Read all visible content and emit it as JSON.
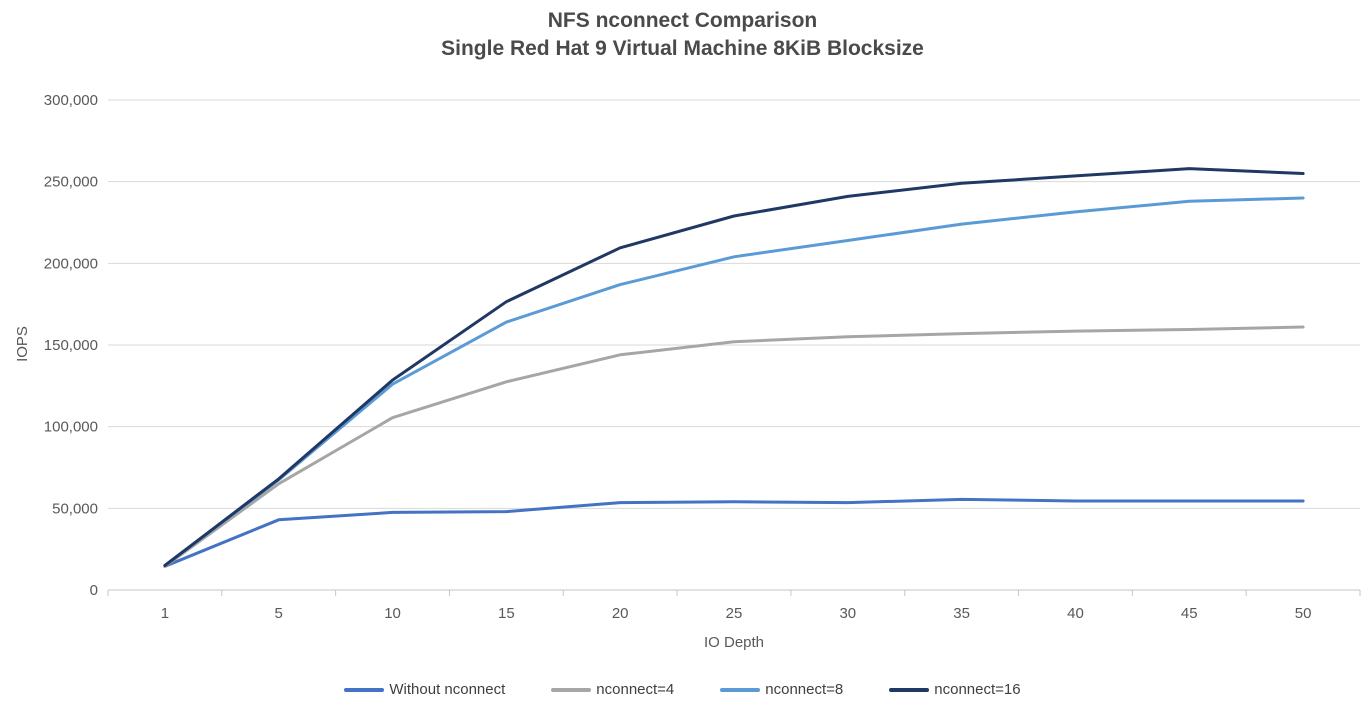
{
  "title": "NFS nconnect Comparison",
  "subtitle": "Single Red Hat 9 Virtual Machine 8KiB Blocksize",
  "chart_data": {
    "type": "line",
    "title": "NFS nconnect Comparison",
    "subtitle": "Single Red Hat 9 Virtual Machine 8KiB Blocksize",
    "x_axis_label": "IO Depth",
    "y_axis_label": "IOPS",
    "x": [
      1,
      5,
      10,
      15,
      20,
      25,
      30,
      35,
      40,
      45,
      50
    ],
    "ylim": [
      0,
      300000
    ],
    "y_tick_step": 50000,
    "grid": true,
    "legend_position": "bottom",
    "axis_colors": {
      "gridline": "#d9d9d9",
      "axis_line": "#c6c6c6",
      "tick_label": "#595959"
    },
    "series": [
      {
        "name": "Without nconnect",
        "color": "#4472c4",
        "values": [
          14500,
          43000,
          47500,
          48000,
          53500,
          54000,
          53500,
          55500,
          54500,
          54500,
          54500
        ]
      },
      {
        "name": "nconnect=4",
        "color": "#a6a6a6",
        "values": [
          14500,
          65000,
          105500,
          127500,
          144000,
          152000,
          155000,
          157000,
          158500,
          159500,
          161000
        ]
      },
      {
        "name": "nconnect=8",
        "color": "#5b9bd5",
        "values": [
          15000,
          67500,
          126000,
          164000,
          187000,
          204000,
          214000,
          224000,
          231500,
          238000,
          240000
        ]
      },
      {
        "name": "nconnect=16",
        "color": "#1f3864",
        "values": [
          15000,
          68000,
          128500,
          176500,
          209500,
          229000,
          241000,
          249000,
          253500,
          258000,
          255000
        ]
      }
    ]
  }
}
